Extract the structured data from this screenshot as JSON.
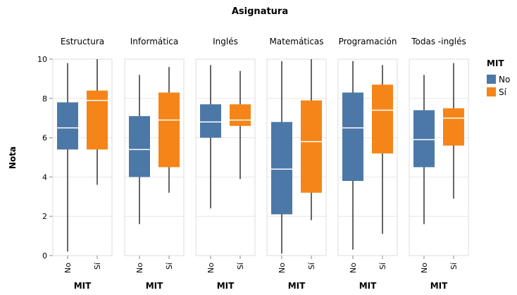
{
  "chart_data": {
    "type": "boxplot",
    "title": "Asignatura",
    "ylabel": "Nota",
    "xlabel": "MIT",
    "ylim": [
      0,
      10
    ],
    "yticks": [
      0,
      2,
      4,
      6,
      8,
      10
    ],
    "grid": true,
    "legend": {
      "title": "MIT",
      "position": "right",
      "entries": [
        {
          "label": "No",
          "color": "#4c78a8"
        },
        {
          "label": "Sí",
          "color": "#f58518"
        }
      ]
    },
    "categories": [
      "No",
      "Sí"
    ],
    "facets": [
      {
        "name": "Estructura",
        "boxes": [
          {
            "cat": "No",
            "min": 0.2,
            "q1": 5.4,
            "median": 6.5,
            "q3": 7.8,
            "max": 9.8
          },
          {
            "cat": "Sí",
            "min": 3.6,
            "q1": 5.4,
            "median": 7.9,
            "q3": 8.4,
            "max": 10.0
          }
        ]
      },
      {
        "name": "Informática",
        "boxes": [
          {
            "cat": "No",
            "min": 1.6,
            "q1": 4.0,
            "median": 5.4,
            "q3": 7.1,
            "max": 9.2
          },
          {
            "cat": "Sí",
            "min": 3.2,
            "q1": 4.5,
            "median": 6.9,
            "q3": 8.3,
            "max": 9.6
          }
        ]
      },
      {
        "name": "Inglés",
        "boxes": [
          {
            "cat": "No",
            "min": 2.4,
            "q1": 6.0,
            "median": 6.8,
            "q3": 7.7,
            "max": 9.7
          },
          {
            "cat": "Sí",
            "min": 3.9,
            "q1": 6.6,
            "median": 6.9,
            "q3": 7.7,
            "max": 9.4
          }
        ]
      },
      {
        "name": "Matemáticas",
        "boxes": [
          {
            "cat": "No",
            "min": 0.1,
            "q1": 2.1,
            "median": 4.4,
            "q3": 6.8,
            "max": 9.9
          },
          {
            "cat": "Sí",
            "min": 1.8,
            "q1": 3.2,
            "median": 5.8,
            "q3": 7.9,
            "max": 10.0
          }
        ]
      },
      {
        "name": "Programación",
        "boxes": [
          {
            "cat": "No",
            "min": 0.3,
            "q1": 3.8,
            "median": 6.5,
            "q3": 8.3,
            "max": 9.9
          },
          {
            "cat": "Sí",
            "min": 1.1,
            "q1": 5.2,
            "median": 7.4,
            "q3": 8.7,
            "max": 9.7
          }
        ]
      },
      {
        "name": "Todas -inglés",
        "boxes": [
          {
            "cat": "No",
            "min": 1.6,
            "q1": 4.5,
            "median": 5.9,
            "q3": 7.4,
            "max": 9.2
          },
          {
            "cat": "Sí",
            "min": 2.9,
            "q1": 5.6,
            "median": 7.0,
            "q3": 7.5,
            "max": 9.8
          }
        ]
      }
    ]
  }
}
